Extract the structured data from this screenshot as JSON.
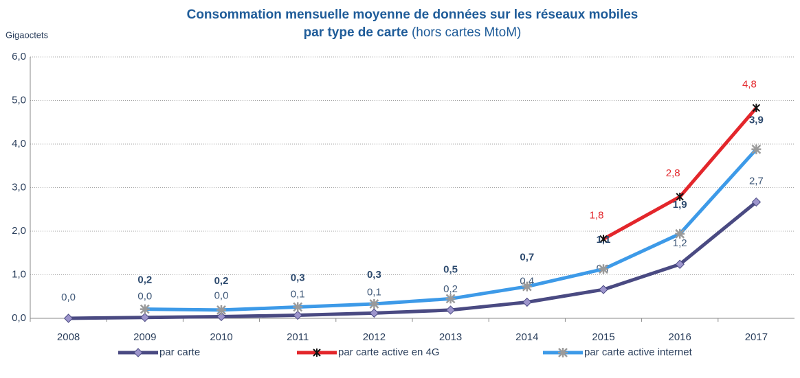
{
  "chart_data": {
    "type": "line",
    "title": "Consommation  mensuelle moyenne de données sur  les réseaux mobiles",
    "subtitle": "par type de carte",
    "subtitle_note": "(hors cartes MtoM)",
    "y_label": "Gigaoctets",
    "categories": [
      "2008",
      "2009",
      "2010",
      "2011",
      "2012",
      "2013",
      "2014",
      "2015",
      "2016",
      "2017"
    ],
    "ylim": [
      0,
      6
    ],
    "yticks": [
      {
        "value": 0,
        "label": "0,0"
      },
      {
        "value": 1,
        "label": "1,0"
      },
      {
        "value": 2,
        "label": "2,0"
      },
      {
        "value": 3,
        "label": "3,0"
      },
      {
        "value": 4,
        "label": "4,0"
      },
      {
        "value": 5,
        "label": "5,0"
      },
      {
        "value": 6,
        "label": "6,0"
      }
    ],
    "grid": true,
    "legend": "bottom",
    "series": [
      {
        "name": "par carte",
        "color": "#4a4a82",
        "marker_color": "#9d95cc",
        "label_color": "#3f5878",
        "label_bold": false,
        "values": [
          0.0,
          0.02,
          0.04,
          0.07,
          0.12,
          0.19,
          0.37,
          0.66,
          1.24,
          2.67
        ],
        "value_labels": [
          "0,0",
          "0,0",
          "0,0",
          "0,1",
          "0,1",
          "0,2",
          "0,4",
          "0,7",
          "1,2",
          "2,7"
        ]
      },
      {
        "name": "par carte active en 4G",
        "color": "#e3262b",
        "marker_color": "#111111",
        "label_color": "#e3262b",
        "label_bold": false,
        "values": [
          null,
          null,
          null,
          null,
          null,
          null,
          null,
          1.82,
          2.79,
          4.83
        ],
        "value_labels": [
          null,
          null,
          null,
          null,
          null,
          null,
          null,
          "1,8",
          "2,8",
          "4,8"
        ]
      },
      {
        "name": "par carte active internet",
        "color": "#3d9ae8",
        "marker_color": "#9a9a9a",
        "label_color": "#2d4a6e",
        "label_bold": true,
        "values": [
          null,
          0.21,
          0.19,
          0.26,
          0.33,
          0.45,
          0.73,
          1.13,
          1.94,
          3.88
        ],
        "value_labels": [
          null,
          "0,2",
          "0,2",
          "0,3",
          "0,3",
          "0,5",
          "0,7",
          "1,1",
          "1,9",
          "3,9"
        ]
      }
    ]
  }
}
